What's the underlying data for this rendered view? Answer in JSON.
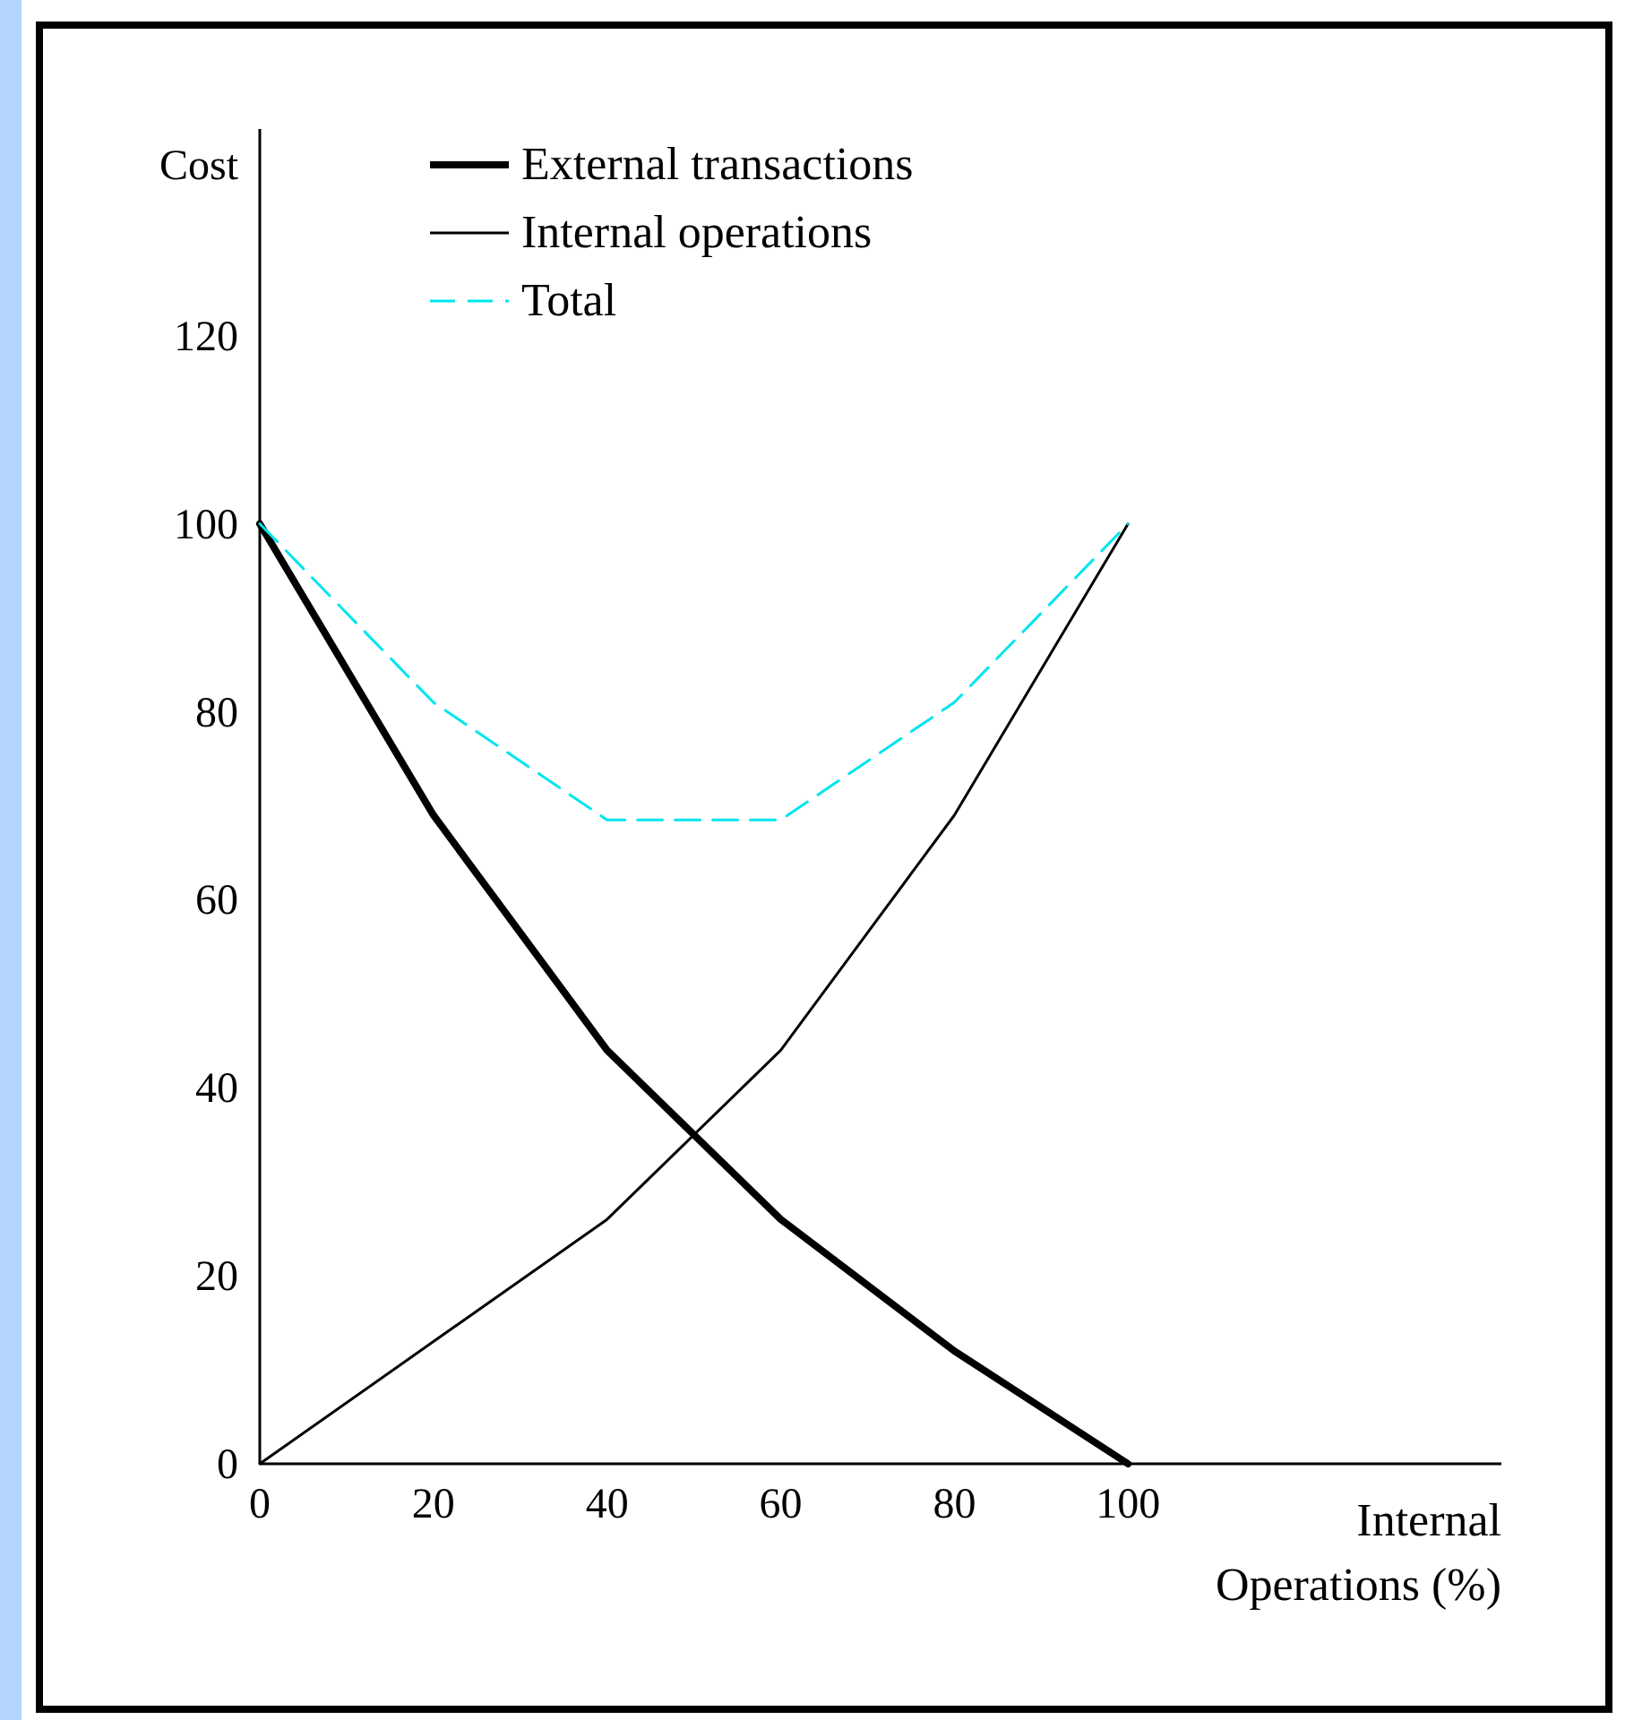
{
  "chart_data": {
    "type": "line",
    "xlabel": "Internal\nOperations (%)",
    "ylabel": "Cost",
    "x": [
      0,
      20,
      40,
      60,
      80,
      100
    ],
    "series": [
      {
        "name": "External transactions",
        "color": "#000000",
        "line_style": "solid",
        "values": [
          100,
          69,
          44,
          26,
          12,
          0
        ]
      },
      {
        "name": "Internal operations",
        "color": "#000000",
        "line_style": "solid",
        "values": [
          0,
          13,
          26,
          44,
          69,
          100
        ]
      },
      {
        "name": "Total",
        "color": "#00e5ee",
        "line_style": "dashed",
        "values": [
          100,
          81,
          68.5,
          68.5,
          81,
          100
        ]
      }
    ],
    "xlim": [
      0,
      143
    ],
    "ylim": [
      0,
      142
    ],
    "xticks": [
      0,
      20,
      40,
      60,
      80,
      100
    ],
    "yticks": [
      0,
      20,
      40,
      60,
      80,
      100,
      120
    ],
    "grid": false,
    "legend": "top",
    "marker": "none"
  }
}
